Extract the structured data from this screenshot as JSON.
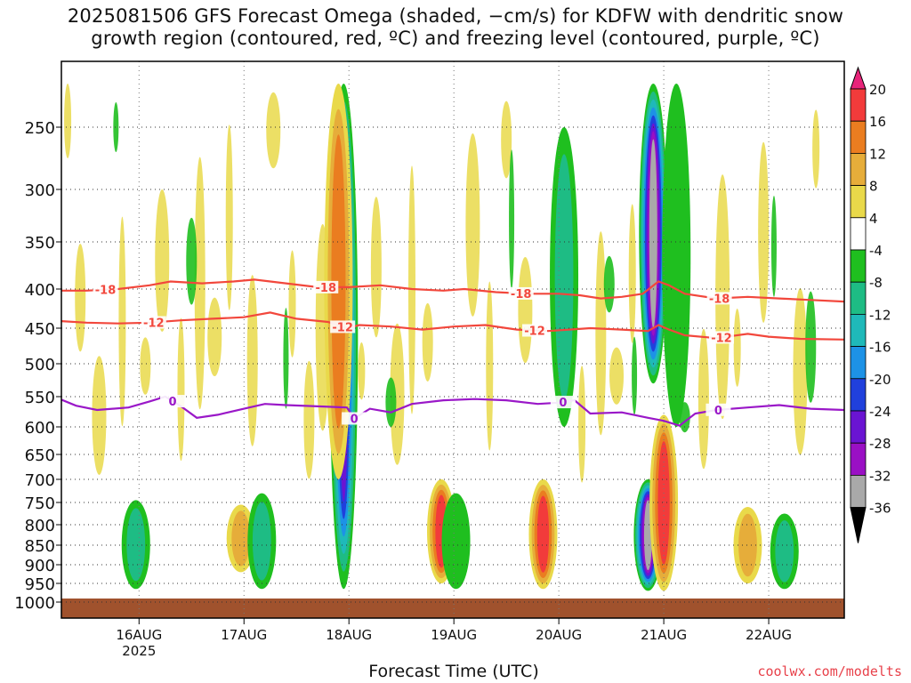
{
  "title": {
    "line1": "2025081506 GFS Forecast Omega (shaded, −cm/s) for KDFW with dendritic snow",
    "line2": "growth region (contoured, red, ºC) and freezing level (contoured, purple, ºC)"
  },
  "xlabel": "Forecast Time (UTC)",
  "credit": "coolwx.com/modelts",
  "colors": {
    "red_contour": "#f2473c",
    "purple_contour": "#9a18c8",
    "ground": "#a0522d"
  },
  "chart_data": {
    "type": "heatmap",
    "title": "2025081506 GFS Forecast Omega (shaded, −cm/s) for KDFW with dendritic snow growth region (contoured, red, ºC) and freezing level (contoured, purple, ºC)",
    "xlabel": "Forecast Time (UTC)",
    "ylabel": "",
    "x_ticks": [
      "16AUG",
      "17AUG",
      "18AUG",
      "19AUG",
      "20AUG",
      "21AUG",
      "22AUG"
    ],
    "x_year_label": "2025",
    "y_ticks": [
      250,
      300,
      350,
      400,
      450,
      500,
      550,
      600,
      650,
      700,
      750,
      800,
      850,
      900,
      950,
      1000
    ],
    "x_range_days": [
      15.26,
      22.72
    ],
    "y_range_hpa": [
      208,
      1012
    ],
    "grid": true,
    "colorbar": {
      "labels": [
        20,
        16,
        12,
        8,
        4,
        -4,
        -8,
        -12,
        -16,
        -20,
        -24,
        -28,
        -32,
        -36
      ],
      "colors": [
        "#e8247a",
        "#f23b3b",
        "#ea7d20",
        "#e6ad3a",
        "#e9d94a",
        "#ffffff",
        "#1fbf1f",
        "#1ebc84",
        "#1fb9b9",
        "#1d92e6",
        "#2040dc",
        "#6a14d2",
        "#9a10c4",
        "#a9a9a9",
        "#000000"
      ]
    },
    "contours": {
      "dgz_minus18": {
        "label": "-18",
        "points": [
          [
            15.26,
            402
          ],
          [
            15.5,
            402
          ],
          [
            15.8,
            400
          ],
          [
            16.1,
            396
          ],
          [
            16.3,
            392
          ],
          [
            16.6,
            394
          ],
          [
            16.9,
            392
          ],
          [
            17.1,
            390
          ],
          [
            17.4,
            394
          ],
          [
            17.7,
            398
          ],
          [
            18.0,
            398
          ],
          [
            18.3,
            396
          ],
          [
            18.6,
            400
          ],
          [
            18.9,
            402
          ],
          [
            19.1,
            400
          ],
          [
            19.4,
            404
          ],
          [
            19.7,
            406
          ],
          [
            20.0,
            406
          ],
          [
            20.2,
            408
          ],
          [
            20.4,
            412
          ],
          [
            20.6,
            410
          ],
          [
            20.8,
            406
          ],
          [
            20.95,
            392
          ],
          [
            21.05,
            396
          ],
          [
            21.2,
            406
          ],
          [
            21.5,
            412
          ],
          [
            21.8,
            410
          ],
          [
            22.1,
            412
          ],
          [
            22.4,
            414
          ],
          [
            22.72,
            416
          ]
        ],
        "label_days": [
          15.68,
          17.78,
          19.64,
          21.53
        ]
      },
      "dgz_minus12": {
        "label": "-12",
        "points": [
          [
            15.26,
            441
          ],
          [
            15.5,
            443
          ],
          [
            15.8,
            444
          ],
          [
            16.1,
            443
          ],
          [
            16.4,
            440
          ],
          [
            16.7,
            438
          ],
          [
            17.0,
            436
          ],
          [
            17.25,
            430
          ],
          [
            17.5,
            438
          ],
          [
            17.8,
            442
          ],
          [
            17.98,
            450
          ],
          [
            18.1,
            446
          ],
          [
            18.4,
            448
          ],
          [
            18.7,
            452
          ],
          [
            19.0,
            448
          ],
          [
            19.3,
            446
          ],
          [
            19.6,
            452
          ],
          [
            19.9,
            454
          ],
          [
            20.1,
            452
          ],
          [
            20.3,
            450
          ],
          [
            20.6,
            452
          ],
          [
            20.85,
            454
          ],
          [
            20.95,
            446
          ],
          [
            21.05,
            452
          ],
          [
            21.2,
            460
          ],
          [
            21.5,
            464
          ],
          [
            21.8,
            458
          ],
          [
            22.0,
            462
          ],
          [
            22.3,
            465
          ],
          [
            22.72,
            466
          ]
        ],
        "label_days": [
          16.14,
          17.94,
          19.77,
          21.55
        ]
      },
      "freezing_0": {
        "label": "0",
        "points": [
          [
            15.26,
            555
          ],
          [
            15.4,
            565
          ],
          [
            15.6,
            572
          ],
          [
            15.9,
            568
          ],
          [
            16.1,
            558
          ],
          [
            16.25,
            550
          ],
          [
            16.4,
            566
          ],
          [
            16.55,
            585
          ],
          [
            16.75,
            580
          ],
          [
            17.0,
            570
          ],
          [
            17.2,
            562
          ],
          [
            17.4,
            564
          ],
          [
            17.7,
            566
          ],
          [
            17.98,
            568
          ],
          [
            18.05,
            586
          ],
          [
            18.2,
            570
          ],
          [
            18.4,
            576
          ],
          [
            18.6,
            562
          ],
          [
            18.9,
            556
          ],
          [
            19.2,
            554
          ],
          [
            19.5,
            556
          ],
          [
            19.8,
            562
          ],
          [
            20.0,
            560
          ],
          [
            20.15,
            556
          ],
          [
            20.3,
            578
          ],
          [
            20.6,
            576
          ],
          [
            20.85,
            585
          ],
          [
            21.0,
            590
          ],
          [
            21.15,
            598
          ],
          [
            21.3,
            578
          ],
          [
            21.5,
            572
          ],
          [
            21.8,
            568
          ],
          [
            22.1,
            564
          ],
          [
            22.4,
            570
          ],
          [
            22.72,
            572
          ]
        ],
        "label_days": [
          16.32,
          18.05,
          20.04,
          21.52
        ]
      }
    },
    "shaded_features": [
      {
        "day": 15.97,
        "p_top": 745,
        "p_bot": 965,
        "peak": -12
      },
      {
        "day": 16.97,
        "p_top": 755,
        "p_bot": 920,
        "peak": 12
      },
      {
        "day": 17.17,
        "p_top": 730,
        "p_bot": 965,
        "peak": -12
      },
      {
        "day": 17.95,
        "p_top": 215,
        "p_bot": 965,
        "peak": -28
      },
      {
        "day": 17.9,
        "p_top": 215,
        "p_bot": 700,
        "peak": 16
      },
      {
        "day": 18.88,
        "p_top": 700,
        "p_bot": 950,
        "peak": 20
      },
      {
        "day": 19.02,
        "p_top": 730,
        "p_bot": 965,
        "peak": -8
      },
      {
        "day": 19.85,
        "p_top": 700,
        "p_bot": 965,
        "peak": 20
      },
      {
        "day": 20.05,
        "p_top": 250,
        "p_bot": 600,
        "peak": -12
      },
      {
        "day": 20.9,
        "p_top": 215,
        "p_bot": 530,
        "peak": -36
      },
      {
        "day": 20.85,
        "p_top": 700,
        "p_bot": 970,
        "peak": -36
      },
      {
        "day": 21.0,
        "p_top": 580,
        "p_bot": 970,
        "peak": 20
      },
      {
        "day": 21.12,
        "p_top": 215,
        "p_bot": 600,
        "peak": -8
      },
      {
        "day": 21.8,
        "p_top": 760,
        "p_bot": 950,
        "peak": 12
      },
      {
        "day": 22.15,
        "p_top": 775,
        "p_bot": 965,
        "peak": -12
      },
      {
        "day": 22.15,
        "p_top": 240,
        "p_bot": 650,
        "peak": 4
      }
    ]
  }
}
